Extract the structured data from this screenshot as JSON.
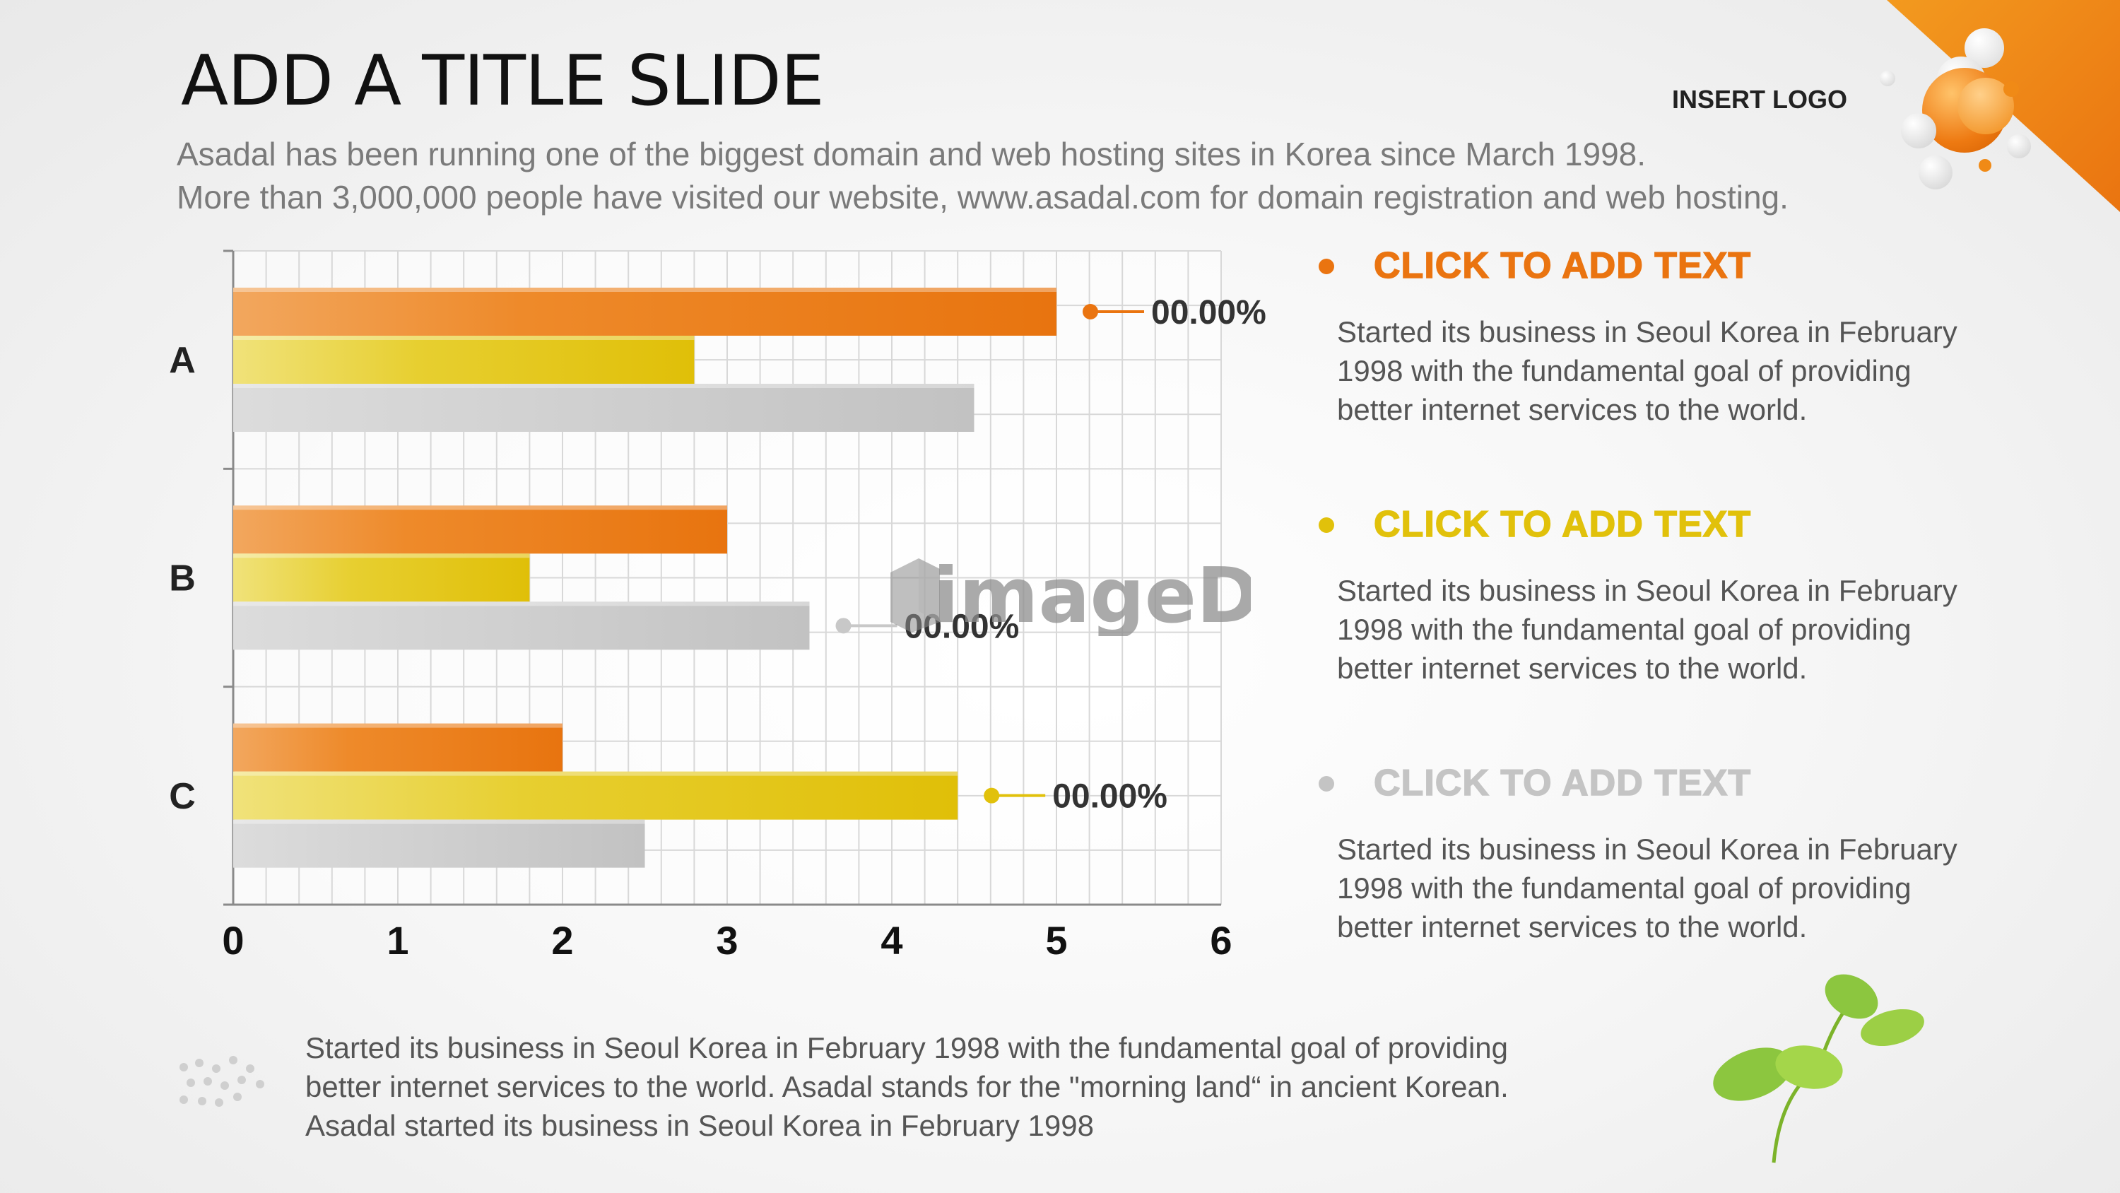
{
  "slide": {
    "title": "ADD A TITLE SLIDE",
    "logo_placeholder": "INSERT LOGO",
    "subtitle_lines": [
      "Asadal has been running one of the biggest domain and web hosting sites in Korea since March 1998.",
      "More than 3,000,000 people have visited our website,  www.asadal.com for domain registration and web hosting."
    ]
  },
  "colors": {
    "orange": "#ea7410",
    "yellow": "#e1c10b",
    "gray": "#c8c8c8",
    "text_gray": "#7a7a7a",
    "bullet_gray": "#c4c4c4"
  },
  "chart_data": {
    "type": "bar",
    "orientation": "horizontal",
    "categories": [
      "A",
      "B",
      "C"
    ],
    "series": [
      {
        "color": "#ea7410",
        "values": [
          5,
          3,
          2
        ]
      },
      {
        "color": "#e1c10b",
        "values": [
          2.8,
          1.8,
          4.4
        ]
      },
      {
        "color": "#c8c8c8",
        "values": [
          4.5,
          3.5,
          2.5
        ]
      }
    ],
    "xlim": [
      0,
      6
    ],
    "xticks": [
      "0",
      "1",
      "2",
      "3",
      "4",
      "5",
      "6"
    ],
    "grid": true,
    "callouts": [
      {
        "category": "A",
        "series_index": 0,
        "text": "00.00%",
        "color": "#ea7410"
      },
      {
        "category": "B",
        "series_index": 2,
        "text": "00.00%",
        "color": "#c8c8c8"
      },
      {
        "category": "C",
        "series_index": 1,
        "text": "00.00%",
        "color": "#e1c10b"
      }
    ]
  },
  "watermark": {
    "text": "imageDJ"
  },
  "bullets": [
    {
      "heading": "CLICK TO ADD TEXT",
      "color": "#ea7410",
      "body": "Started its business in Seoul Korea  in February 1998 with the fundamental goal of providing better internet services to the world."
    },
    {
      "heading": "CLICK TO ADD TEXT",
      "color": "#e1c10b",
      "body": "Started its business in Seoul Korea  in February 1998 with the fundamental goal of providing better internet services to the world."
    },
    {
      "heading": "CLICK TO ADD TEXT",
      "color": "#c4c4c4",
      "body": "Started its business in Seoul Korea  in February 1998 with the fundamental goal of providing better internet services to the world."
    }
  ],
  "footer": {
    "lines": [
      "Started its business in Seoul Korea  in February 1998 with the fundamental goal of providing",
      "better internet services to the world. Asadal stands for the \"morning land“ in ancient Korean.",
      "Asadal started its business in Seoul Korea  in February 1998"
    ]
  }
}
